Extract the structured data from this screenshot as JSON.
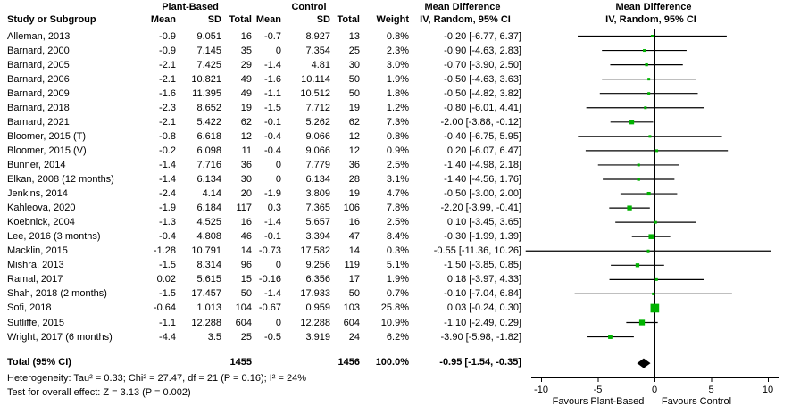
{
  "columns": {
    "study": "Study or Subgroup",
    "mean": "Mean",
    "sd": "SD",
    "total": "Total",
    "weight": "Weight",
    "group_plant": "Plant-Based",
    "group_control": "Control",
    "md_title": "Mean Difference",
    "md_method": "IV, Random, 95% CI"
  },
  "footer": {
    "heterogeneity": "Heterogeneity: Tau² = 0.33; Chi² = 27.47, df = 21 (P = 0.16); I² = 24%",
    "overall_effect": "Test for overall effect: Z = 3.13 (P = 0.002)"
  },
  "colors": {
    "square_green": "#00b200",
    "line_black": "#000000",
    "diamond_black": "#000000"
  },
  "chart_data": {
    "type": "forest",
    "title": "Mean Difference — IV, Random, 95% CI",
    "xlim": [
      -10,
      10
    ],
    "x_ticks": [
      "-10",
      "-5",
      "0",
      "5",
      "10"
    ],
    "x_tick_values": [
      -10,
      -5,
      0,
      5,
      10
    ],
    "favours_left": "Favours Plant-Based",
    "favours_right": "Favours Control",
    "studies": [
      {
        "name": "Alleman, 2013",
        "pb_mean": "-0.9",
        "pb_sd": "9.051",
        "pb_total": "16",
        "c_mean": "-0.7",
        "c_sd": "8.927",
        "c_total": "13",
        "weight": "0.8%",
        "ci_label": "-0.20 [-6.77, 6.37]",
        "md": -0.2,
        "lo": -6.77,
        "hi": 6.37,
        "w": 0.8
      },
      {
        "name": "Barnard, 2000",
        "pb_mean": "-0.9",
        "pb_sd": "7.145",
        "pb_total": "35",
        "c_mean": "0",
        "c_sd": "7.354",
        "c_total": "25",
        "weight": "2.3%",
        "ci_label": "-0.90 [-4.63, 2.83]",
        "md": -0.9,
        "lo": -4.63,
        "hi": 2.83,
        "w": 2.3
      },
      {
        "name": "Barnard, 2005",
        "pb_mean": "-2.1",
        "pb_sd": "7.425",
        "pb_total": "29",
        "c_mean": "-1.4",
        "c_sd": "4.81",
        "c_total": "30",
        "weight": "3.0%",
        "ci_label": "-0.70 [-3.90, 2.50]",
        "md": -0.7,
        "lo": -3.9,
        "hi": 2.5,
        "w": 3.0
      },
      {
        "name": "Barnard, 2006",
        "pb_mean": "-2.1",
        "pb_sd": "10.821",
        "pb_total": "49",
        "c_mean": "-1.6",
        "c_sd": "10.114",
        "c_total": "50",
        "weight": "1.9%",
        "ci_label": "-0.50 [-4.63, 3.63]",
        "md": -0.5,
        "lo": -4.63,
        "hi": 3.63,
        "w": 1.9
      },
      {
        "name": "Barnard, 2009",
        "pb_mean": "-1.6",
        "pb_sd": "11.395",
        "pb_total": "49",
        "c_mean": "-1.1",
        "c_sd": "10.512",
        "c_total": "50",
        "weight": "1.8%",
        "ci_label": "-0.50 [-4.82, 3.82]",
        "md": -0.5,
        "lo": -4.82,
        "hi": 3.82,
        "w": 1.8
      },
      {
        "name": "Barnard, 2018",
        "pb_mean": "-2.3",
        "pb_sd": "8.652",
        "pb_total": "19",
        "c_mean": "-1.5",
        "c_sd": "7.712",
        "c_total": "19",
        "weight": "1.2%",
        "ci_label": "-0.80 [-6.01, 4.41]",
        "md": -0.8,
        "lo": -6.01,
        "hi": 4.41,
        "w": 1.2
      },
      {
        "name": "Barnard, 2021",
        "pb_mean": "-2.1",
        "pb_sd": "5.422",
        "pb_total": "62",
        "c_mean": "-0.1",
        "c_sd": "5.262",
        "c_total": "62",
        "weight": "7.3%",
        "ci_label": "-2.00 [-3.88, -0.12]",
        "md": -2.0,
        "lo": -3.88,
        "hi": -0.12,
        "w": 7.3
      },
      {
        "name": "Bloomer, 2015 (T)",
        "pb_mean": "-0.8",
        "pb_sd": "6.618",
        "pb_total": "12",
        "c_mean": "-0.4",
        "c_sd": "9.066",
        "c_total": "12",
        "weight": "0.8%",
        "ci_label": "-0.40 [-6.75, 5.95]",
        "md": -0.4,
        "lo": -6.75,
        "hi": 5.95,
        "w": 0.8
      },
      {
        "name": "Bloomer, 2015 (V)",
        "pb_mean": "-0.2",
        "pb_sd": "6.098",
        "pb_total": "11",
        "c_mean": "-0.4",
        "c_sd": "9.066",
        "c_total": "12",
        "weight": "0.9%",
        "ci_label": "0.20 [-6.07, 6.47]",
        "md": 0.2,
        "lo": -6.07,
        "hi": 6.47,
        "w": 0.9
      },
      {
        "name": "Bunner, 2014",
        "pb_mean": "-1.4",
        "pb_sd": "7.716",
        "pb_total": "36",
        "c_mean": "0",
        "c_sd": "7.779",
        "c_total": "36",
        "weight": "2.5%",
        "ci_label": "-1.40 [-4.98, 2.18]",
        "md": -1.4,
        "lo": -4.98,
        "hi": 2.18,
        "w": 2.5
      },
      {
        "name": "Elkan, 2008 (12 months)",
        "pb_mean": "-1.4",
        "pb_sd": "6.134",
        "pb_total": "30",
        "c_mean": "0",
        "c_sd": "6.134",
        "c_total": "28",
        "weight": "3.1%",
        "ci_label": "-1.40 [-4.56, 1.76]",
        "md": -1.4,
        "lo": -4.56,
        "hi": 1.76,
        "w": 3.1
      },
      {
        "name": "Jenkins, 2014",
        "pb_mean": "-2.4",
        "pb_sd": "4.14",
        "pb_total": "20",
        "c_mean": "-1.9",
        "c_sd": "3.809",
        "c_total": "19",
        "weight": "4.7%",
        "ci_label": "-0.50 [-3.00, 2.00]",
        "md": -0.5,
        "lo": -3.0,
        "hi": 2.0,
        "w": 4.7
      },
      {
        "name": "Kahleova, 2020",
        "pb_mean": "-1.9",
        "pb_sd": "6.184",
        "pb_total": "117",
        "c_mean": "0.3",
        "c_sd": "7.365",
        "c_total": "106",
        "weight": "7.8%",
        "ci_label": "-2.20 [-3.99, -0.41]",
        "md": -2.2,
        "lo": -3.99,
        "hi": -0.41,
        "w": 7.8
      },
      {
        "name": "Koebnick, 2004",
        "pb_mean": "-1.3",
        "pb_sd": "4.525",
        "pb_total": "16",
        "c_mean": "-1.4",
        "c_sd": "5.657",
        "c_total": "16",
        "weight": "2.5%",
        "ci_label": "0.10 [-3.45, 3.65]",
        "md": 0.1,
        "lo": -3.45,
        "hi": 3.65,
        "w": 2.5
      },
      {
        "name": "Lee, 2016 (3 months)",
        "pb_mean": "-0.4",
        "pb_sd": "4.808",
        "pb_total": "46",
        "c_mean": "-0.1",
        "c_sd": "3.394",
        "c_total": "47",
        "weight": "8.4%",
        "ci_label": "-0.30 [-1.99, 1.39]",
        "md": -0.3,
        "lo": -1.99,
        "hi": 1.39,
        "w": 8.4
      },
      {
        "name": "Macklin, 2015",
        "pb_mean": "-1.28",
        "pb_sd": "10.791",
        "pb_total": "14",
        "c_mean": "-0.73",
        "c_sd": "17.582",
        "c_total": "14",
        "weight": "0.3%",
        "ci_label": "-0.55 [-11.36, 10.26]",
        "md": -0.55,
        "lo": -11.36,
        "hi": 10.26,
        "w": 0.3
      },
      {
        "name": "Mishra, 2013",
        "pb_mean": "-1.5",
        "pb_sd": "8.314",
        "pb_total": "96",
        "c_mean": "0",
        "c_sd": "9.256",
        "c_total": "119",
        "weight": "5.1%",
        "ci_label": "-1.50 [-3.85, 0.85]",
        "md": -1.5,
        "lo": -3.85,
        "hi": 0.85,
        "w": 5.1
      },
      {
        "name": "Ramal, 2017",
        "pb_mean": "0.02",
        "pb_sd": "5.615",
        "pb_total": "15",
        "c_mean": "-0.16",
        "c_sd": "6.356",
        "c_total": "17",
        "weight": "1.9%",
        "ci_label": "0.18 [-3.97, 4.33]",
        "md": 0.18,
        "lo": -3.97,
        "hi": 4.33,
        "w": 1.9
      },
      {
        "name": "Shah, 2018 (2 months)",
        "pb_mean": "-1.5",
        "pb_sd": "17.457",
        "pb_total": "50",
        "c_mean": "-1.4",
        "c_sd": "17.933",
        "c_total": "50",
        "weight": "0.7%",
        "ci_label": "-0.10 [-7.04, 6.84]",
        "md": -0.1,
        "lo": -7.04,
        "hi": 6.84,
        "w": 0.7
      },
      {
        "name": "Sofi, 2018",
        "pb_mean": "-0.64",
        "pb_sd": "1.013",
        "pb_total": "104",
        "c_mean": "-0.67",
        "c_sd": "0.959",
        "c_total": "103",
        "weight": "25.8%",
        "ci_label": "0.03 [-0.24, 0.30]",
        "md": 0.03,
        "lo": -0.24,
        "hi": 0.3,
        "w": 25.8
      },
      {
        "name": "Sutliffe, 2015",
        "pb_mean": "-1.1",
        "pb_sd": "12.288",
        "pb_total": "604",
        "c_mean": "0",
        "c_sd": "12.288",
        "c_total": "604",
        "weight": "10.9%",
        "ci_label": "-1.10 [-2.49, 0.29]",
        "md": -1.1,
        "lo": -2.49,
        "hi": 0.29,
        "w": 10.9
      },
      {
        "name": "Wright, 2017 (6 months)",
        "pb_mean": "-4.4",
        "pb_sd": "3.5",
        "pb_total": "25",
        "c_mean": "-0.5",
        "c_sd": "3.919",
        "c_total": "24",
        "weight": "6.2%",
        "ci_label": "-3.90 [-5.98, -1.82]",
        "md": -3.9,
        "lo": -5.98,
        "hi": -1.82,
        "w": 6.2
      }
    ],
    "total": {
      "label": "Total (95% CI)",
      "pb_total": "1455",
      "c_total": "1456",
      "weight": "100.0%",
      "ci_label": "-0.95 [-1.54, -0.35]",
      "md": -0.95,
      "lo": -1.54,
      "hi": -0.35
    }
  }
}
